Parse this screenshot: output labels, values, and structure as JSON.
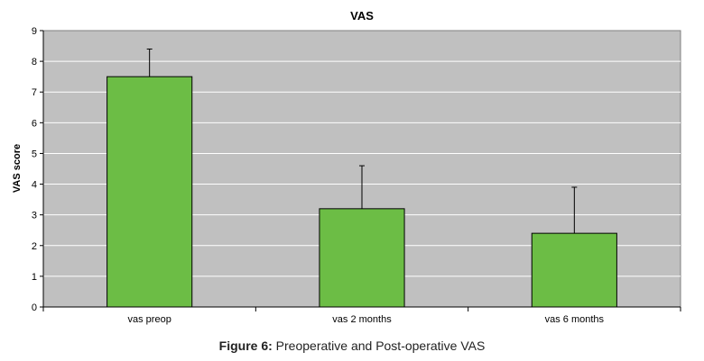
{
  "chart_data": {
    "type": "bar",
    "title": "VAS",
    "xlabel": "",
    "ylabel": "VAS score",
    "categories": [
      "vas preop",
      "vas 2 months",
      "vas 6 months"
    ],
    "values": [
      7.5,
      3.2,
      2.4
    ],
    "error_upper": [
      0.9,
      1.4,
      1.5
    ],
    "ylim": [
      0,
      9
    ],
    "yticks": [
      0,
      1,
      2,
      3,
      4,
      5,
      6,
      7,
      8,
      9
    ],
    "grid": true,
    "legend": "none",
    "colors": {
      "bar": "#6cbd45",
      "bar_outline": "#000000",
      "plot_bg": "#c0c0c0",
      "gridline": "#ffffff"
    }
  },
  "caption": {
    "label": "Figure 6:",
    "text": " Preoperative and Post-operative VAS"
  }
}
